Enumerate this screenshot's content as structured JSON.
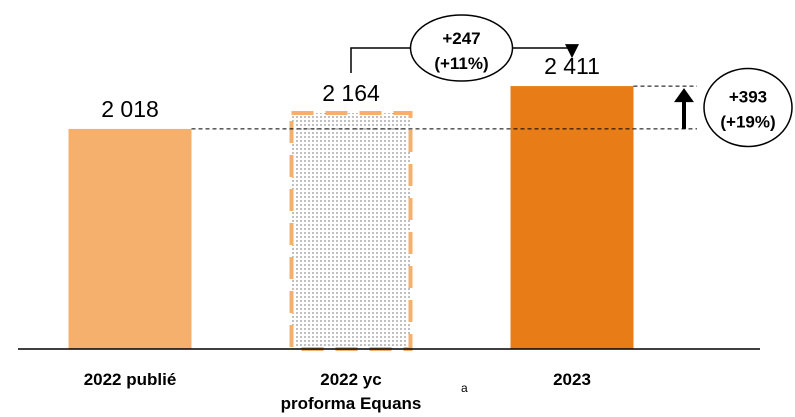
{
  "chart_data": {
    "type": "bar",
    "categories": [
      "2022 publié",
      "2022 yc|proforma Equans",
      "2023"
    ],
    "values": [
      2018,
      2164,
      2411
    ],
    "value_labels": [
      "2 018",
      "2 164",
      "2 411"
    ],
    "colors": [
      "#F5B06E",
      "#F5B06E",
      "#E87C16"
    ],
    "styles": [
      "solid",
      "dotted-dashed-outline",
      "solid"
    ],
    "ylim": [
      0,
      2650
    ],
    "footnote_marker": "a",
    "annotations": {
      "bridge": {
        "from": 1,
        "to": 2,
        "line1": "+247",
        "line2": "(+11%)"
      },
      "total": {
        "from": 0,
        "to": 2,
        "line1": "+393",
        "line2": "(+19%)"
      }
    }
  }
}
